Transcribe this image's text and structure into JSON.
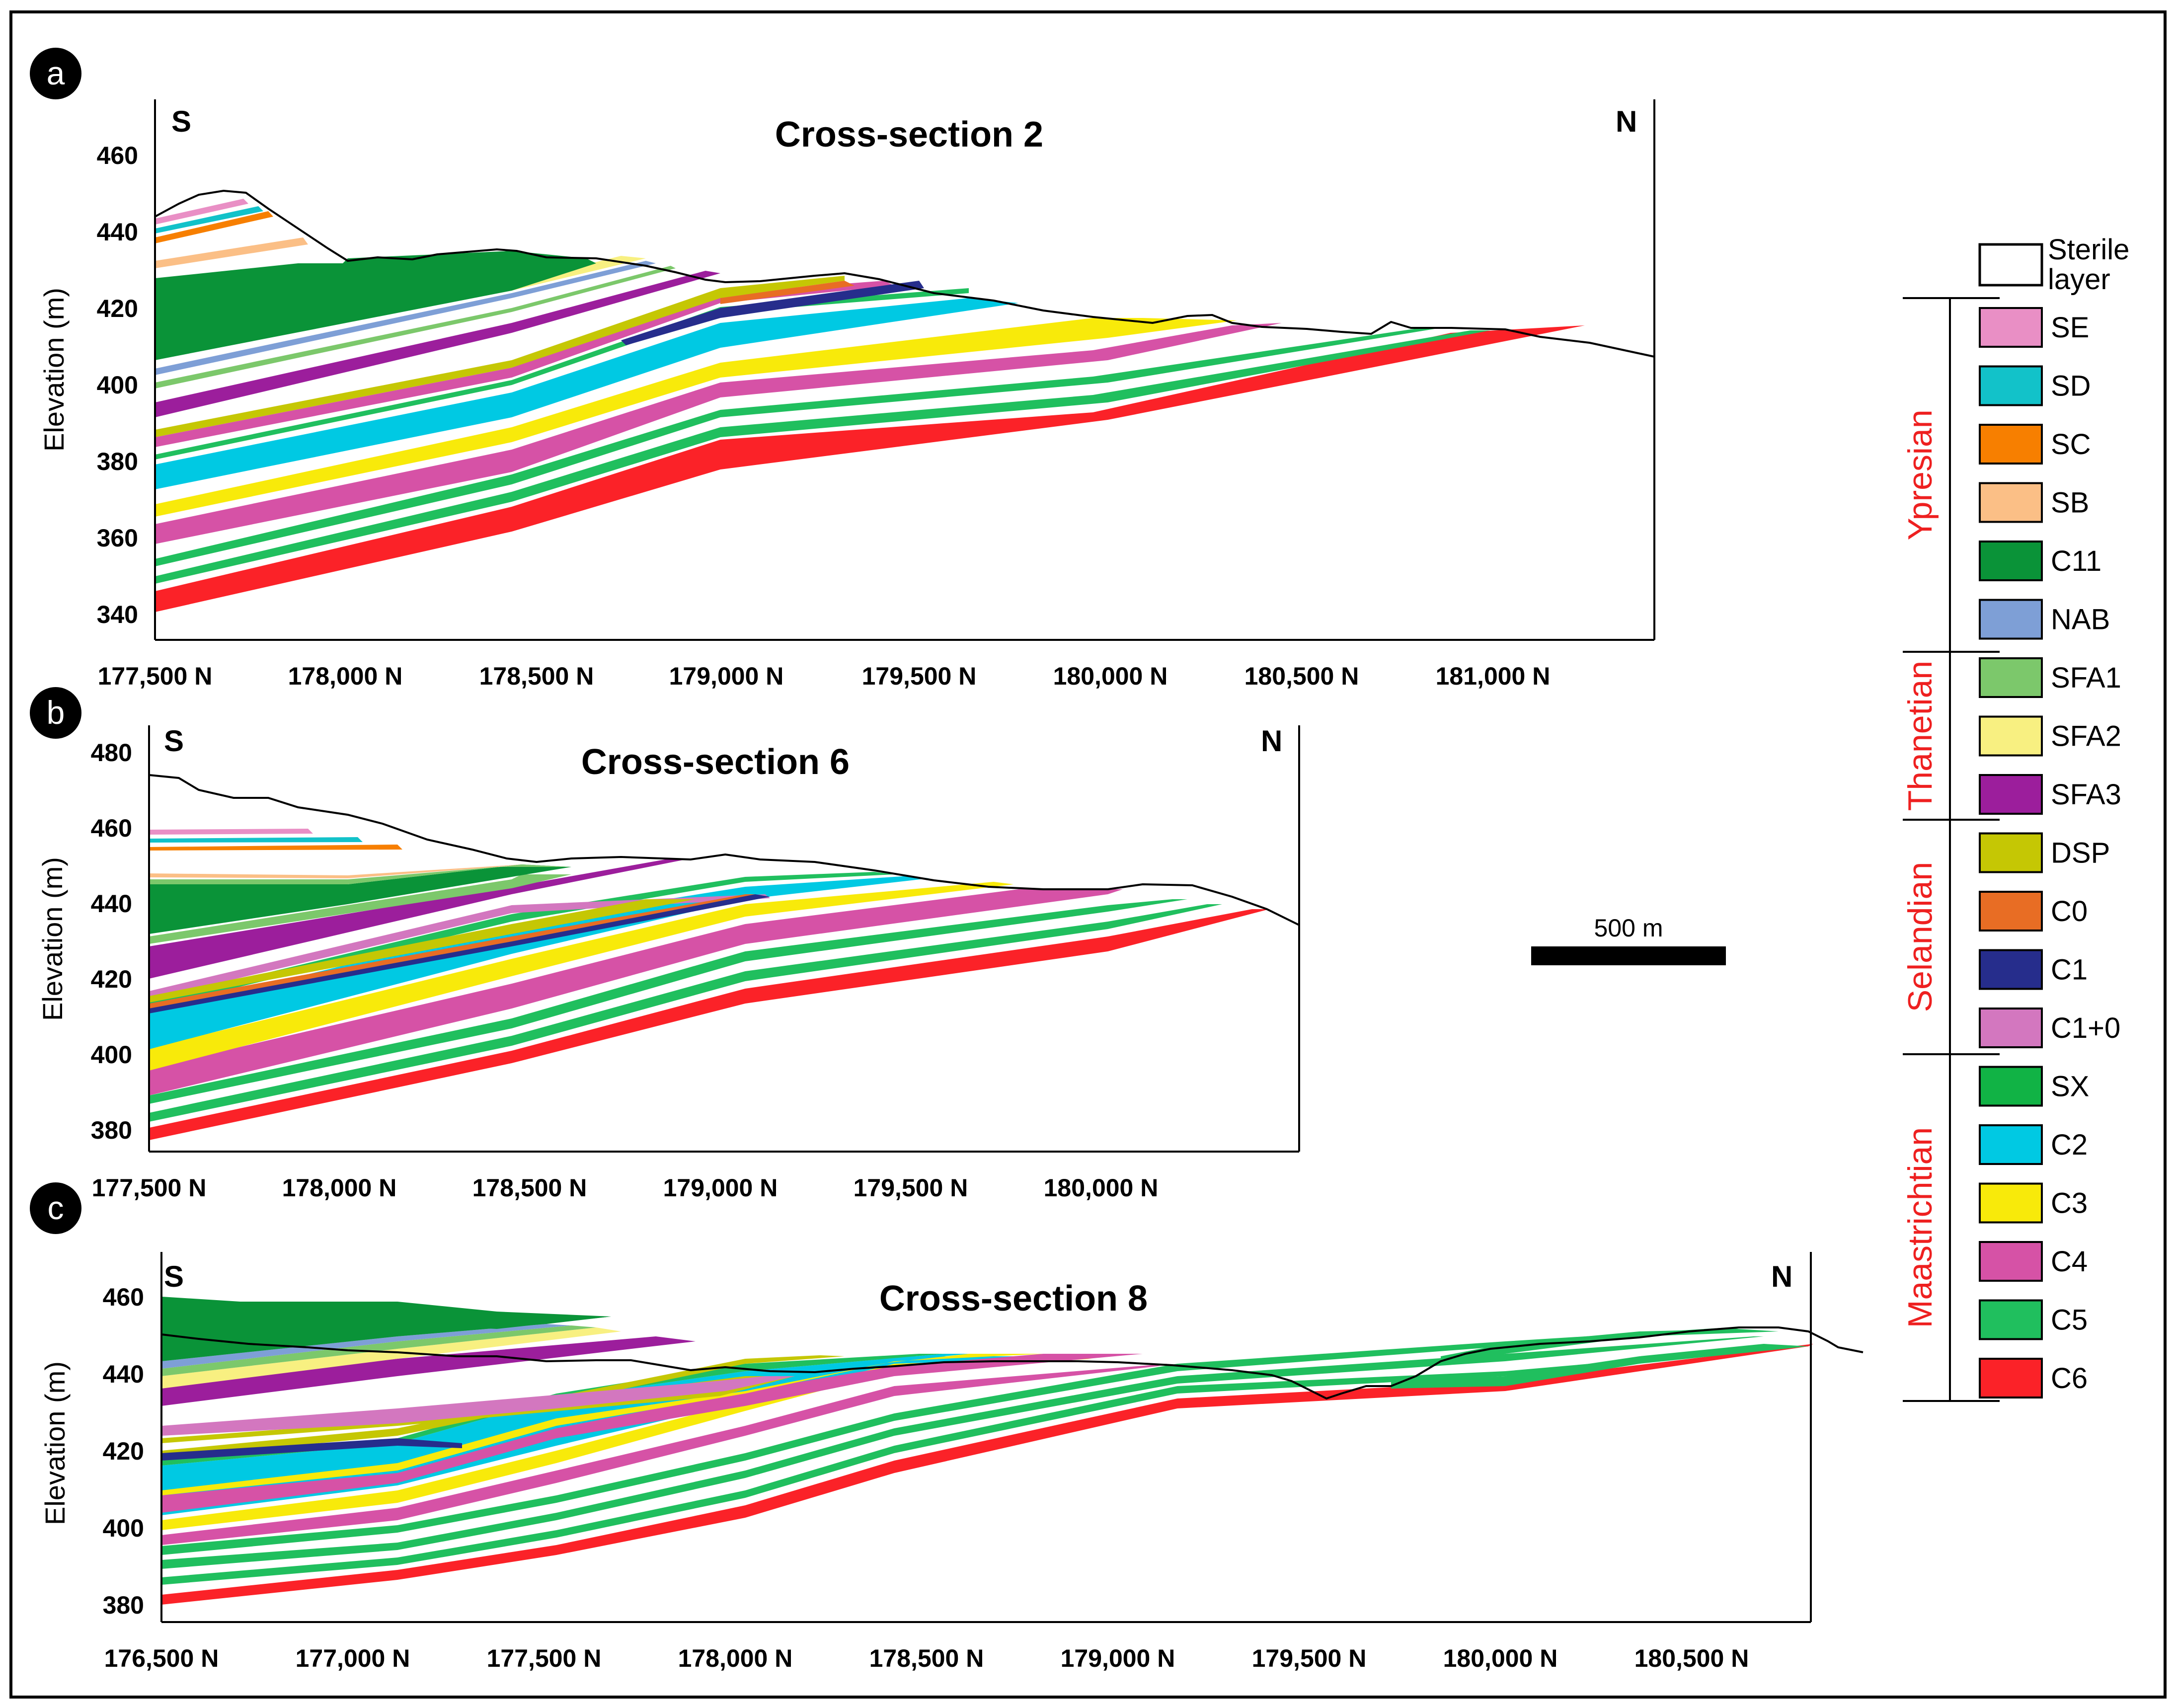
{
  "panels": [
    {
      "letter": "a",
      "title": "Cross-section 2",
      "left_dir": "S",
      "right_dir": "N",
      "ylabel": "Elevation (m)",
      "yticks": [
        "340",
        "360",
        "380",
        "400",
        "420",
        "440",
        "460"
      ],
      "xticks": [
        "177,500 N",
        "178,000 N",
        "178,500 N",
        "179,000 N",
        "179,500 N",
        "180,000 N",
        "180,500 N",
        "181,000 N"
      ]
    },
    {
      "letter": "b",
      "title": "Cross-section 6",
      "left_dir": "S",
      "right_dir": "N",
      "ylabel": "Elevation (m)",
      "yticks": [
        "380",
        "400",
        "420",
        "440",
        "460",
        "480"
      ],
      "xticks": [
        "177,500 N",
        "178,000 N",
        "178,500 N",
        "179,000 N",
        "179,500 N",
        "180,000 N"
      ]
    },
    {
      "letter": "c",
      "title": "Cross-section 8",
      "left_dir": "S",
      "right_dir": "N",
      "ylabel": "Elevation (m)",
      "yticks": [
        "380",
        "400",
        "420",
        "440",
        "460"
      ],
      "xticks": [
        "176,500 N",
        "177,000 N",
        "177,500 N",
        "178,000 N",
        "178,500 N",
        "179,000 N",
        "179,500 N",
        "180,000 N",
        "180,500 N"
      ]
    }
  ],
  "scale_bar": {
    "label": "500 m"
  },
  "legend": {
    "sterile": {
      "label_line1": "Sterile",
      "label_line2": "layer"
    },
    "items": [
      {
        "code": "SE",
        "color": "#e98fc5"
      },
      {
        "code": "SD",
        "color": "#12c2c9"
      },
      {
        "code": "SC",
        "color": "#f77f00"
      },
      {
        "code": "SB",
        "color": "#fbbf86"
      },
      {
        "code": "C11",
        "color": "#0a9338"
      },
      {
        "code": "NAB",
        "color": "#7e9fd6"
      },
      {
        "code": "SFA1",
        "color": "#7cc86b"
      },
      {
        "code": "SFA2",
        "color": "#f8f081"
      },
      {
        "code": "SFA3",
        "color": "#9c1e9c"
      },
      {
        "code": "DSP",
        "color": "#c5c704"
      },
      {
        "code": "C0",
        "color": "#e86d24"
      },
      {
        "code": "C1",
        "color": "#262d8c"
      },
      {
        "code": "C1+0",
        "color": "#d377bf"
      },
      {
        "code": "SX",
        "color": "#11b345"
      },
      {
        "code": "C2",
        "color": "#00c9e3"
      },
      {
        "code": "C3",
        "color": "#f8ea0a"
      },
      {
        "code": "C4",
        "color": "#d652a6"
      },
      {
        "code": "C5",
        "color": "#20bf5e"
      },
      {
        "code": "C6",
        "color": "#fb2228"
      }
    ],
    "stages": [
      "Ypresian",
      "Thanetian",
      "Selandian",
      "Maastrichtian"
    ]
  }
}
